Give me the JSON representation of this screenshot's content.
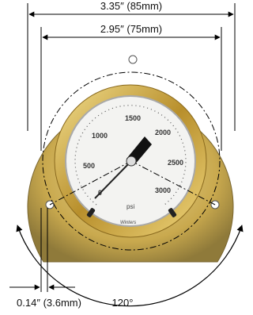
{
  "dimensions": {
    "outer_width": "3.35″ (85mm)",
    "bolt_circle": "2.95″ (75mm)",
    "hole_offset": "0.14″ (3.6mm)",
    "hole_angle": "120°"
  },
  "dial": {
    "labels": [
      "0",
      "500",
      "1000",
      "1500",
      "2000",
      "2500",
      "3000"
    ],
    "unit": "psi",
    "brand": "Winters"
  }
}
